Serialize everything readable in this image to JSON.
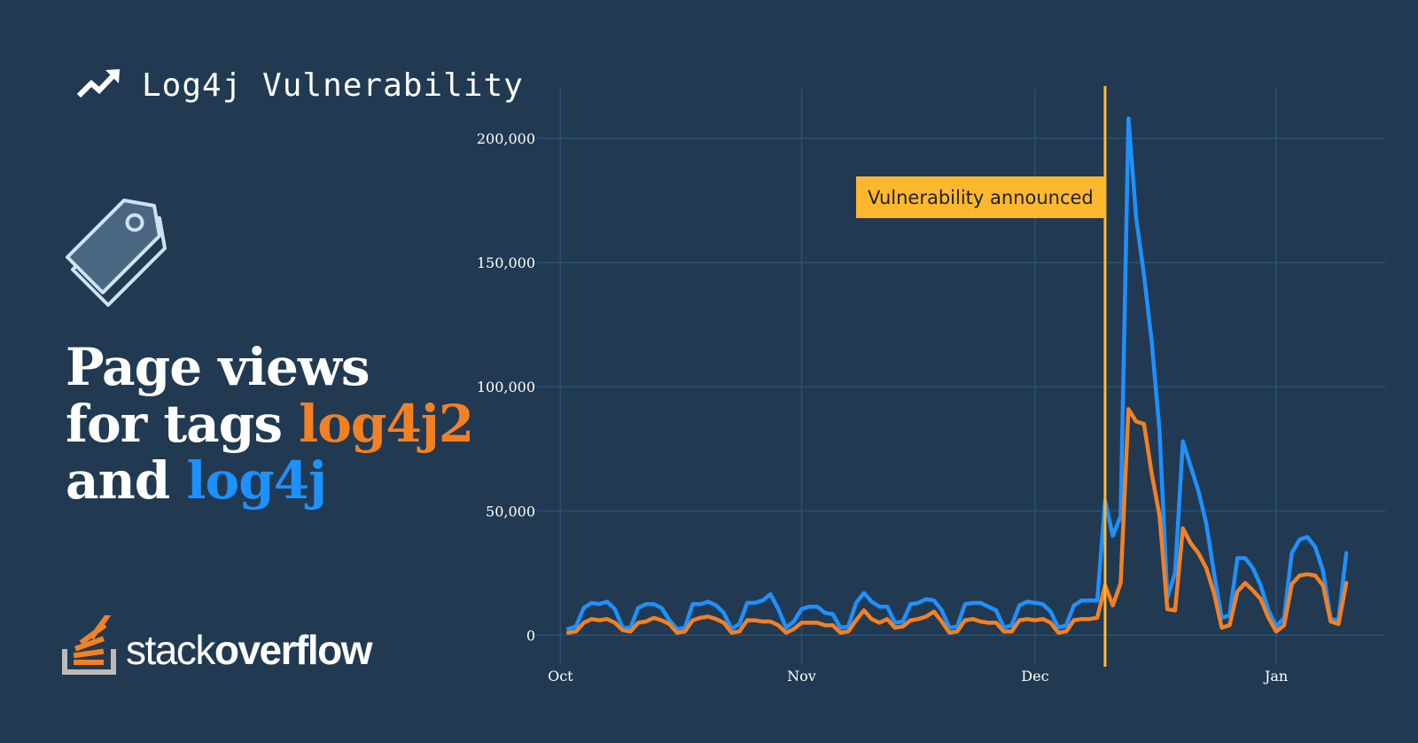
{
  "header": {
    "title": "Log4j Vulnerability",
    "icon": "trending-up-icon"
  },
  "tag_icon": "tag-icon",
  "headline": {
    "line1": "Page views",
    "line2_prefix": "for tags",
    "tag1": "log4j2",
    "line3_prefix": "and",
    "tag2": "log4j"
  },
  "logo": {
    "icon": "stack-overflow-logo-icon",
    "word_light": "stack",
    "word_bold": "overflow"
  },
  "colors": {
    "background": "#213a52",
    "log4j2": "#f48024",
    "log4j": "#1e90ff",
    "annotation": "#ffb82e",
    "grid": "#2c5074"
  },
  "chart_data": {
    "type": "line",
    "title": "",
    "xlabel": "",
    "ylabel": "",
    "x_ticks": [
      "Oct",
      "Nov",
      "Dec",
      "Jan"
    ],
    "x_tick_days": [
      0,
      31,
      61,
      92
    ],
    "y_ticks": [
      "0",
      "50,000",
      "100,000",
      "150,000",
      "200,000"
    ],
    "y_tick_values": [
      0,
      50000,
      100000,
      150000,
      200000
    ],
    "ylim": [
      -12000,
      220000
    ],
    "xlim": [
      -3,
      106
    ],
    "grid": true,
    "annotation": {
      "label": "Vulnerability announced",
      "x_day": 70
    },
    "series": [
      {
        "name": "log4j",
        "color": "#1e90ff",
        "points": [
          [
            1,
            2500
          ],
          [
            2,
            3500
          ],
          [
            3,
            11000
          ],
          [
            4,
            13000
          ],
          [
            5,
            12500
          ],
          [
            6,
            13500
          ],
          [
            7,
            10500
          ],
          [
            8,
            3000
          ],
          [
            9,
            3000
          ],
          [
            10,
            11000
          ],
          [
            11,
            12500
          ],
          [
            12,
            12500
          ],
          [
            13,
            11000
          ],
          [
            14,
            6000
          ],
          [
            15,
            2500
          ],
          [
            16,
            3000
          ],
          [
            17,
            12500
          ],
          [
            18,
            12500
          ],
          [
            19,
            13500
          ],
          [
            20,
            12000
          ],
          [
            21,
            9000
          ],
          [
            22,
            2500
          ],
          [
            23,
            4500
          ],
          [
            24,
            13000
          ],
          [
            25,
            13000
          ],
          [
            26,
            14000
          ],
          [
            27,
            16500
          ],
          [
            28,
            10500
          ],
          [
            29,
            3000
          ],
          [
            30,
            5500
          ],
          [
            31,
            10500
          ],
          [
            32,
            11500
          ],
          [
            33,
            11500
          ],
          [
            34,
            9000
          ],
          [
            35,
            8500
          ],
          [
            36,
            3000
          ],
          [
            37,
            3500
          ],
          [
            38,
            13000
          ],
          [
            39,
            17000
          ],
          [
            40,
            13500
          ],
          [
            41,
            11500
          ],
          [
            42,
            11500
          ],
          [
            43,
            5000
          ],
          [
            44,
            5500
          ],
          [
            45,
            12500
          ],
          [
            46,
            13000
          ],
          [
            47,
            14500
          ],
          [
            48,
            14000
          ],
          [
            49,
            10000
          ],
          [
            50,
            3000
          ],
          [
            51,
            3500
          ],
          [
            52,
            12500
          ],
          [
            53,
            13000
          ],
          [
            54,
            13000
          ],
          [
            55,
            11500
          ],
          [
            56,
            10000
          ],
          [
            57,
            3000
          ],
          [
            58,
            4000
          ],
          [
            59,
            12000
          ],
          [
            60,
            13500
          ],
          [
            61,
            13000
          ],
          [
            62,
            12500
          ],
          [
            63,
            9500
          ],
          [
            64,
            3000
          ],
          [
            65,
            4000
          ],
          [
            66,
            12000
          ],
          [
            67,
            14000
          ],
          [
            68,
            14000
          ],
          [
            69,
            14000
          ],
          [
            70,
            54000
          ],
          [
            71,
            40000
          ],
          [
            72,
            48000
          ],
          [
            73,
            208000
          ],
          [
            74,
            168000
          ],
          [
            75,
            145000
          ],
          [
            76,
            118000
          ],
          [
            77,
            82000
          ],
          [
            78,
            15000
          ],
          [
            79,
            25000
          ],
          [
            80,
            78000
          ],
          [
            81,
            68000
          ],
          [
            82,
            58000
          ],
          [
            83,
            45000
          ],
          [
            84,
            25000
          ],
          [
            85,
            7000
          ],
          [
            86,
            8000
          ],
          [
            87,
            31000
          ],
          [
            88,
            31000
          ],
          [
            89,
            27000
          ],
          [
            90,
            20000
          ],
          [
            91,
            10000
          ],
          [
            92,
            3500
          ],
          [
            93,
            7000
          ],
          [
            94,
            33000
          ],
          [
            95,
            38500
          ],
          [
            96,
            39500
          ],
          [
            97,
            35500
          ],
          [
            98,
            26000
          ],
          [
            99,
            6500
          ],
          [
            100,
            6000
          ],
          [
            101,
            33000
          ]
        ]
      },
      {
        "name": "log4j2",
        "color": "#f48024",
        "points": [
          [
            1,
            1000
          ],
          [
            2,
            1500
          ],
          [
            3,
            5000
          ],
          [
            4,
            6500
          ],
          [
            5,
            6000
          ],
          [
            6,
            6500
          ],
          [
            7,
            5000
          ],
          [
            8,
            2000
          ],
          [
            9,
            1500
          ],
          [
            10,
            5000
          ],
          [
            11,
            5500
          ],
          [
            12,
            7000
          ],
          [
            13,
            6000
          ],
          [
            14,
            4500
          ],
          [
            15,
            1000
          ],
          [
            16,
            1500
          ],
          [
            17,
            6000
          ],
          [
            18,
            7000
          ],
          [
            19,
            7500
          ],
          [
            20,
            6500
          ],
          [
            21,
            5000
          ],
          [
            22,
            1000
          ],
          [
            23,
            1500
          ],
          [
            24,
            6000
          ],
          [
            25,
            6000
          ],
          [
            26,
            5500
          ],
          [
            27,
            5500
          ],
          [
            28,
            4000
          ],
          [
            29,
            1000
          ],
          [
            30,
            2500
          ],
          [
            31,
            5000
          ],
          [
            32,
            5000
          ],
          [
            33,
            5000
          ],
          [
            34,
            4000
          ],
          [
            35,
            4000
          ],
          [
            36,
            1000
          ],
          [
            37,
            1500
          ],
          [
            38,
            6000
          ],
          [
            39,
            10000
          ],
          [
            40,
            6500
          ],
          [
            41,
            5000
          ],
          [
            42,
            6500
          ],
          [
            43,
            3000
          ],
          [
            44,
            3500
          ],
          [
            45,
            6000
          ],
          [
            46,
            6500
          ],
          [
            47,
            7500
          ],
          [
            48,
            9500
          ],
          [
            49,
            5500
          ],
          [
            50,
            1000
          ],
          [
            51,
            1500
          ],
          [
            52,
            6000
          ],
          [
            53,
            6500
          ],
          [
            54,
            5500
          ],
          [
            55,
            5000
          ],
          [
            56,
            5000
          ],
          [
            57,
            1500
          ],
          [
            58,
            1500
          ],
          [
            59,
            6000
          ],
          [
            60,
            6500
          ],
          [
            61,
            6000
          ],
          [
            62,
            6500
          ],
          [
            63,
            5000
          ],
          [
            64,
            1000
          ],
          [
            65,
            1500
          ],
          [
            66,
            6000
          ],
          [
            67,
            6500
          ],
          [
            68,
            6500
          ],
          [
            69,
            7000
          ],
          [
            70,
            20000
          ],
          [
            71,
            12000
          ],
          [
            72,
            21000
          ],
          [
            73,
            91000
          ],
          [
            74,
            86000
          ],
          [
            75,
            85000
          ],
          [
            76,
            65000
          ],
          [
            77,
            48000
          ],
          [
            78,
            10500
          ],
          [
            79,
            10000
          ],
          [
            80,
            43000
          ],
          [
            81,
            37000
          ],
          [
            82,
            33000
          ],
          [
            83,
            27000
          ],
          [
            84,
            17000
          ],
          [
            85,
            3000
          ],
          [
            86,
            4000
          ],
          [
            87,
            17500
          ],
          [
            88,
            21000
          ],
          [
            89,
            18000
          ],
          [
            90,
            14500
          ],
          [
            91,
            7000
          ],
          [
            92,
            1500
          ],
          [
            93,
            4000
          ],
          [
            94,
            20500
          ],
          [
            95,
            24000
          ],
          [
            96,
            24500
          ],
          [
            97,
            24000
          ],
          [
            98,
            20000
          ],
          [
            99,
            5500
          ],
          [
            100,
            4500
          ],
          [
            101,
            21000
          ]
        ]
      }
    ]
  }
}
